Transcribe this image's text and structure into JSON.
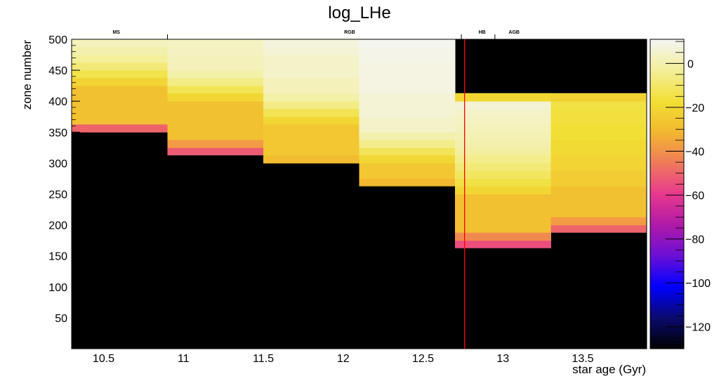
{
  "chart_data": {
    "type": "heatmap",
    "title": "log_LHe",
    "xlabel": "star age (Gyr)",
    "ylabel": "zone number",
    "xlim": [
      10.3,
      13.9
    ],
    "ylim": [
      0,
      500
    ],
    "x_ticks": [
      "10.5",
      "11",
      "11.5",
      "12",
      "12.5",
      "13",
      "13.5"
    ],
    "x_tick_values": [
      10.5,
      11,
      11.5,
      12,
      12.5,
      13,
      13.5
    ],
    "y_ticks": [
      "50",
      "100",
      "150",
      "200",
      "250",
      "300",
      "350",
      "400",
      "450",
      "500"
    ],
    "y_tick_values": [
      50,
      100,
      150,
      200,
      250,
      300,
      350,
      400,
      450,
      500
    ],
    "colorbar": {
      "range": [
        -130,
        11
      ],
      "ticks": [
        "0",
        "−20",
        "−40",
        "−60",
        "−80",
        "−100",
        "−120"
      ],
      "tick_values": [
        0,
        -20,
        -40,
        -60,
        -80,
        -100,
        -120
      ],
      "stops": [
        "#000000",
        "#0a0a6e",
        "#0000ff",
        "#6a0fd6",
        "#b01aa8",
        "#e8398d",
        "#f07a5a",
        "#f2b830",
        "#f2df35",
        "#f3ef9a",
        "#f5f5f5"
      ]
    },
    "background_color": "#000000",
    "columns": [
      {
        "x0": 10.3,
        "x1": 10.9,
        "y_low": 350,
        "top": 500,
        "layers": [
          {
            "y0": 350,
            "y1": 363,
            "v": -50
          },
          {
            "y0": 363,
            "y1": 425,
            "v": -28
          },
          {
            "y0": 425,
            "y1": 438,
            "v": -21
          },
          {
            "y0": 438,
            "y1": 450,
            "v": -14
          },
          {
            "y0": 450,
            "y1": 463,
            "v": -8
          },
          {
            "y0": 463,
            "y1": 475,
            "v": -3
          },
          {
            "y0": 475,
            "y1": 488,
            "v": 0
          },
          {
            "y0": 488,
            "y1": 500,
            "v": 2
          }
        ]
      },
      {
        "x0": 10.9,
        "x1": 11.5,
        "y_low": 313,
        "top": 500,
        "layers": [
          {
            "y0": 313,
            "y1": 325,
            "v": -52
          },
          {
            "y0": 325,
            "y1": 338,
            "v": -38
          },
          {
            "y0": 338,
            "y1": 400,
            "v": -28
          },
          {
            "y0": 400,
            "y1": 413,
            "v": -20
          },
          {
            "y0": 413,
            "y1": 425,
            "v": -13
          },
          {
            "y0": 425,
            "y1": 438,
            "v": -6
          },
          {
            "y0": 438,
            "y1": 450,
            "v": -1
          },
          {
            "y0": 450,
            "y1": 475,
            "v": 2
          },
          {
            "y0": 475,
            "y1": 500,
            "v": 3
          }
        ]
      },
      {
        "x0": 11.5,
        "x1": 12.1,
        "y_low": 300,
        "top": 500,
        "layers": [
          {
            "y0": 300,
            "y1": 313,
            "v": -30
          },
          {
            "y0": 313,
            "y1": 363,
            "v": -26
          },
          {
            "y0": 363,
            "y1": 375,
            "v": -20
          },
          {
            "y0": 375,
            "y1": 388,
            "v": -13
          },
          {
            "y0": 388,
            "y1": 400,
            "v": -6
          },
          {
            "y0": 400,
            "y1": 413,
            "v": -1
          },
          {
            "y0": 413,
            "y1": 438,
            "v": 2
          },
          {
            "y0": 438,
            "y1": 475,
            "v": 4
          },
          {
            "y0": 475,
            "y1": 488,
            "v": 6
          },
          {
            "y0": 488,
            "y1": 500,
            "v": 7
          }
        ]
      },
      {
        "x0": 12.1,
        "x1": 12.7,
        "y_low": 263,
        "top": 500,
        "layers": [
          {
            "y0": 263,
            "y1": 275,
            "v": -31
          },
          {
            "y0": 275,
            "y1": 300,
            "v": -26
          },
          {
            "y0": 300,
            "y1": 313,
            "v": -20
          },
          {
            "y0": 313,
            "y1": 325,
            "v": -12
          },
          {
            "y0": 325,
            "y1": 338,
            "v": -5
          },
          {
            "y0": 338,
            "y1": 350,
            "v": 0
          },
          {
            "y0": 350,
            "y1": 375,
            "v": 4
          },
          {
            "y0": 375,
            "y1": 413,
            "v": 6
          },
          {
            "y0": 413,
            "y1": 463,
            "v": 8
          },
          {
            "y0": 463,
            "y1": 488,
            "v": 9
          },
          {
            "y0": 488,
            "y1": 500,
            "v": 10
          }
        ]
      },
      {
        "x0": 12.7,
        "x1": 13.3,
        "y_low": 163,
        "top": 413,
        "layers": [
          {
            "y0": 163,
            "y1": 175,
            "v": -55
          },
          {
            "y0": 175,
            "y1": 188,
            "v": -42
          },
          {
            "y0": 188,
            "y1": 250,
            "v": -28
          },
          {
            "y0": 250,
            "y1": 263,
            "v": -20
          },
          {
            "y0": 263,
            "y1": 275,
            "v": -15
          },
          {
            "y0": 275,
            "y1": 288,
            "v": -11
          },
          {
            "y0": 288,
            "y1": 300,
            "v": -8
          },
          {
            "y0": 300,
            "y1": 313,
            "v": -5
          },
          {
            "y0": 313,
            "y1": 325,
            "v": -2
          },
          {
            "y0": 325,
            "y1": 338,
            "v": 0
          },
          {
            "y0": 338,
            "y1": 350,
            "v": 1
          },
          {
            "y0": 350,
            "y1": 363,
            "v": 2
          },
          {
            "y0": 363,
            "y1": 375,
            "v": 3
          },
          {
            "y0": 375,
            "y1": 388,
            "v": 4
          },
          {
            "y0": 388,
            "y1": 400,
            "v": 6
          },
          {
            "y0": 400,
            "y1": 413,
            "v": -20
          }
        ]
      },
      {
        "x0": 13.3,
        "x1": 13.9,
        "y_low": 188,
        "top": 413,
        "layers": [
          {
            "y0": 188,
            "y1": 200,
            "v": -50
          },
          {
            "y0": 200,
            "y1": 213,
            "v": -38
          },
          {
            "y0": 213,
            "y1": 263,
            "v": -28
          },
          {
            "y0": 263,
            "y1": 288,
            "v": -24
          },
          {
            "y0": 288,
            "y1": 313,
            "v": -21
          },
          {
            "y0": 313,
            "y1": 338,
            "v": -19
          },
          {
            "y0": 338,
            "y1": 363,
            "v": -17
          },
          {
            "y0": 363,
            "y1": 388,
            "v": -16
          },
          {
            "y0": 388,
            "y1": 400,
            "v": -15
          },
          {
            "y0": 400,
            "y1": 413,
            "v": -22
          }
        ]
      }
    ],
    "annotations": [
      {
        "label": "MS",
        "x": 10.58
      },
      {
        "label": "RGB",
        "x": 12.04
      },
      {
        "label": "HB",
        "x": 12.87
      },
      {
        "label": "AGB",
        "x": 13.07
      }
    ],
    "phase_ticks": [
      10.9,
      12.74,
      12.95
    ],
    "current_age_line": {
      "x": 12.76,
      "color": "#ff0000"
    }
  }
}
